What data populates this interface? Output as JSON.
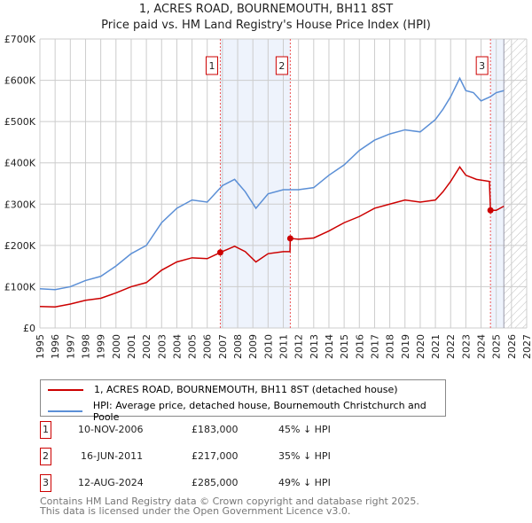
{
  "chart_data": {
    "type": "line",
    "title": "1, ACRES ROAD, BOURNEMOUTH, BH11 8ST",
    "subtitle": "Price paid vs. HM Land Registry's House Price Index (HPI)",
    "xlim": [
      1995,
      2027
    ],
    "ylim": [
      0,
      700000
    ],
    "x_ticks": [
      "1995",
      "1996",
      "1997",
      "1998",
      "1999",
      "2000",
      "2001",
      "2002",
      "2003",
      "2004",
      "2005",
      "2006",
      "2007",
      "2008",
      "2009",
      "2010",
      "2011",
      "2012",
      "2013",
      "2014",
      "2015",
      "2016",
      "2017",
      "2018",
      "2019",
      "2020",
      "2021",
      "2022",
      "2023",
      "2024",
      "2025",
      "2026",
      "2027"
    ],
    "y_ticks": [
      {
        "v": 0,
        "l": "£0"
      },
      {
        "v": 100000,
        "l": "£100K"
      },
      {
        "v": 200000,
        "l": "£200K"
      },
      {
        "v": 300000,
        "l": "£300K"
      },
      {
        "v": 400000,
        "l": "£400K"
      },
      {
        "v": 500000,
        "l": "£500K"
      },
      {
        "v": 600000,
        "l": "£600K"
      },
      {
        "v": 700000,
        "l": "£700K"
      }
    ],
    "grid": true,
    "forecast_from": 2025.5,
    "series": [
      {
        "name": "1, ACRES ROAD, BOURNEMOUTH, BH11 8ST (detached house)",
        "color": "#cc0000",
        "x": [
          1995,
          1996,
          1997,
          1998,
          1999,
          2000,
          2001,
          2002,
          2003,
          2004,
          2005,
          2006,
          2006.86,
          2007.8,
          2008.5,
          2009.2,
          2010,
          2011,
          2011.44,
          2011.46,
          2012,
          2013,
          2014,
          2015,
          2016,
          2017,
          2018,
          2019,
          2020,
          2021,
          2021.5,
          2022,
          2022.6,
          2023,
          2023.7,
          2024.55,
          2024.62,
          2025,
          2025.5
        ],
        "y": [
          52000,
          51000,
          58000,
          67000,
          72000,
          85000,
          100000,
          110000,
          140000,
          160000,
          170000,
          168000,
          183000,
          198000,
          185000,
          160000,
          180000,
          185000,
          185000,
          217000,
          215000,
          218000,
          235000,
          255000,
          270000,
          290000,
          300000,
          310000,
          305000,
          310000,
          330000,
          355000,
          390000,
          370000,
          360000,
          355000,
          285000,
          285000,
          295000
        ]
      },
      {
        "name": "HPI: Average price, detached house, Bournemouth Christchurch and Poole",
        "color": "#5b8fd6",
        "x": [
          1995,
          1996,
          1997,
          1998,
          1999,
          2000,
          2001,
          2002,
          2003,
          2004,
          2005,
          2006,
          2007,
          2007.8,
          2008.5,
          2009.2,
          2010,
          2011,
          2012,
          2013,
          2014,
          2015,
          2016,
          2017,
          2018,
          2019,
          2020,
          2021,
          2021.5,
          2022,
          2022.6,
          2023,
          2023.5,
          2024,
          2024.6,
          2025,
          2025.5
        ],
        "y": [
          95000,
          93000,
          100000,
          115000,
          125000,
          150000,
          180000,
          200000,
          255000,
          290000,
          310000,
          305000,
          345000,
          360000,
          330000,
          290000,
          325000,
          335000,
          335000,
          340000,
          370000,
          395000,
          430000,
          455000,
          470000,
          480000,
          475000,
          505000,
          530000,
          560000,
          605000,
          575000,
          570000,
          550000,
          560000,
          570000,
          575000
        ]
      }
    ],
    "sales": [
      {
        "n": "1",
        "x": 2006.86,
        "date": "10-NOV-2006",
        "price": "£183,000",
        "value": 183000,
        "delta": "45% ↓ HPI"
      },
      {
        "n": "2",
        "x": 2011.46,
        "date": "16-JUN-2011",
        "price": "£217,000",
        "value": 217000,
        "delta": "35% ↓ HPI"
      },
      {
        "n": "3",
        "x": 2024.62,
        "date": "12-AUG-2024",
        "price": "£285,000",
        "value": 285000,
        "delta": "49% ↓ HPI"
      }
    ]
  },
  "footer": {
    "line1": "Contains HM Land Registry data © Crown copyright and database right 2025.",
    "line2": "This data is licensed under the Open Government Licence v3.0."
  }
}
